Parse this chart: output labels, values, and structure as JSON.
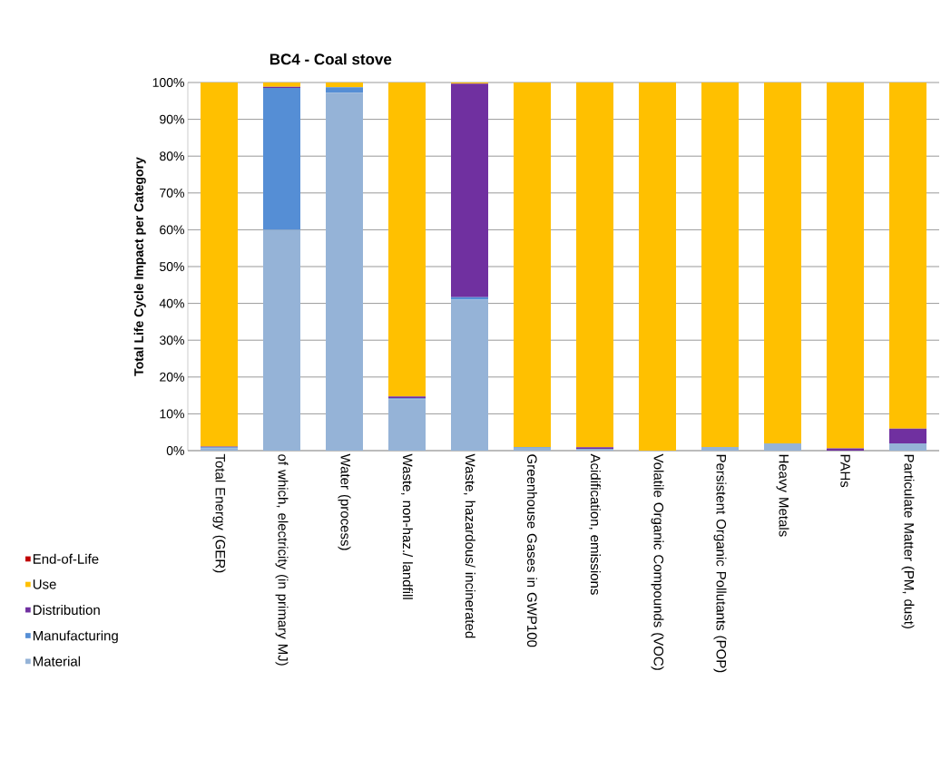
{
  "chart_data": {
    "type": "bar",
    "stacked": true,
    "title": "BC4 - Coal stove",
    "ylabel": "Total Life Cycle Impact per Category",
    "categories": [
      "Total Energy (GER)",
      "of which, electricity (in primary MJ)",
      "Water (process)",
      "Waste, non-haz./ landfill",
      "Waste, hazardous/ incinerated",
      "Greenhouse Gases in GWP100",
      "Acidification, emissions",
      "Volatile Organic Compounds (VOC)",
      "Persistent Organic Pollutants (POP)",
      "Heavy Metals",
      "PAHs",
      "Particulate Matter (PM, dust)"
    ],
    "series": [
      {
        "name": "Material",
        "color": "#95b3d7",
        "values": [
          0.7,
          60,
          97.2,
          14,
          41,
          0.8,
          0.5,
          0,
          1,
          2,
          0,
          2
        ]
      },
      {
        "name": "Manufacturing",
        "color": "#558ed5",
        "values": [
          0.2,
          38.5,
          1.5,
          0.2,
          0.7,
          0.2,
          0,
          0,
          0,
          0,
          0,
          0
        ]
      },
      {
        "name": "Distribution",
        "color": "#7030a0",
        "values": [
          0.2,
          0.3,
          0,
          0.5,
          58,
          0,
          0.4,
          0,
          0,
          0,
          0.6,
          4
        ]
      },
      {
        "name": "Use",
        "color": "#ffc000",
        "values": [
          98.9,
          1.2,
          1.3,
          85.3,
          0.3,
          99,
          99.1,
          100,
          99,
          98,
          99.4,
          94
        ]
      },
      {
        "name": "End-of-Life",
        "color": "#c00000",
        "values": [
          0,
          0,
          0,
          0,
          0,
          0,
          0,
          0,
          0,
          0,
          0,
          0
        ]
      }
    ],
    "ylim": [
      0,
      100
    ],
    "yticks": [
      {
        "value": 0,
        "label": "0%"
      },
      {
        "value": 10,
        "label": "10%"
      },
      {
        "value": 20,
        "label": "20%"
      },
      {
        "value": 30,
        "label": "30%"
      },
      {
        "value": 40,
        "label": "40%"
      },
      {
        "value": 50,
        "label": "50%"
      },
      {
        "value": 60,
        "label": "60%"
      },
      {
        "value": 70,
        "label": "70%"
      },
      {
        "value": 80,
        "label": "80%"
      },
      {
        "value": 90,
        "label": "90%"
      },
      {
        "value": 100,
        "label": "100%"
      }
    ],
    "grid": "y",
    "legend": "bottom left"
  }
}
